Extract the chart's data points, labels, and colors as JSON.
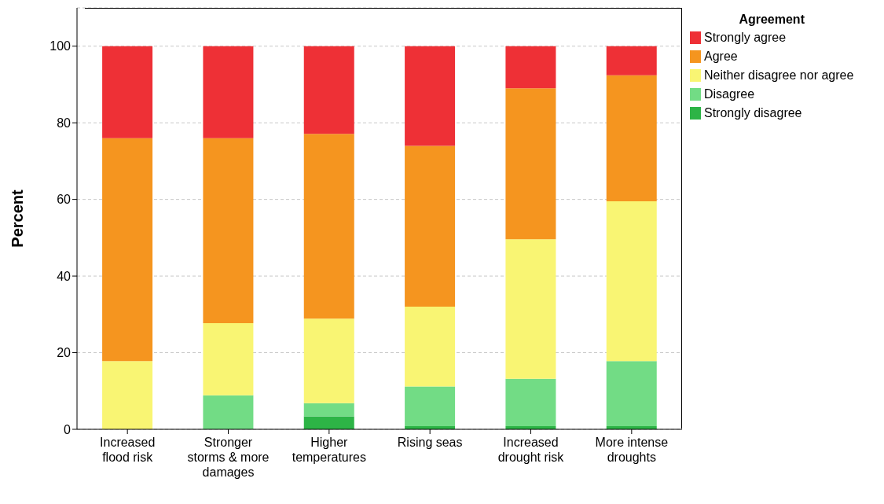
{
  "chart_data": {
    "type": "bar",
    "stacked": true,
    "ylabel": "Percent",
    "legend_title": "Agreement",
    "legend": "top right",
    "grid": "y",
    "categories": [
      "Increased flood risk",
      "Stronger storms & more damages",
      "Higher temperatures",
      "Rising seas",
      "Increased drought risk",
      "More intense droughts"
    ],
    "series": [
      {
        "name": "Strongly disagree",
        "color": "#2db446",
        "values": [
          0,
          0,
          3.4,
          0.8,
          0.8,
          0.8
        ]
      },
      {
        "name": "Disagree",
        "color": "#72dc85",
        "values": [
          0,
          8.9,
          3.4,
          10.4,
          12.4,
          17.0
        ]
      },
      {
        "name": "Neither disagree nor agree",
        "color": "#f9f573",
        "values": [
          17.8,
          18.8,
          22.1,
          20.8,
          36.4,
          41.7
        ]
      },
      {
        "name": "Agree",
        "color": "#f5951f",
        "values": [
          58.2,
          48.3,
          48.2,
          42.0,
          39.4,
          32.9
        ]
      },
      {
        "name": "Strongly agree",
        "color": "#ee3036",
        "values": [
          24.0,
          24.0,
          22.9,
          26.0,
          11.0,
          7.6
        ]
      }
    ],
    "ylim": [
      0,
      110
    ],
    "yticks": [
      0,
      20,
      40,
      60,
      80,
      100
    ]
  }
}
